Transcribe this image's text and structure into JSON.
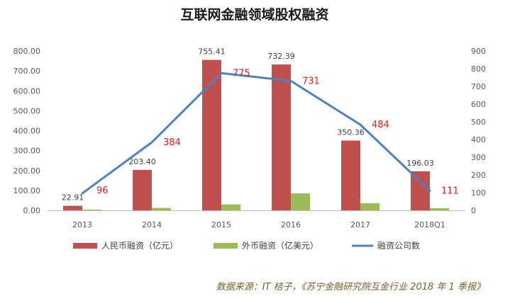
{
  "chart_data": {
    "type": "bar",
    "title": "互联网金融领域股权融资",
    "categories": [
      "2013",
      "2014",
      "2015",
      "2016",
      "2017",
      "2018Q1"
    ],
    "series": [
      {
        "name": "人民币融资（亿元）",
        "type": "bar",
        "axis": "left",
        "color": "#c0504d",
        "values": [
          22.91,
          203.4,
          755.41,
          732.39,
          350.36,
          196.03
        ],
        "labels": [
          "22.91",
          "203.40",
          "755.41",
          "732.39",
          "350.36",
          "196.03"
        ]
      },
      {
        "name": "外币融资（亿美元）",
        "type": "bar",
        "axis": "left",
        "color": "#9bbb59",
        "values": [
          4,
          12,
          30,
          85,
          36,
          11
        ]
      },
      {
        "name": "融资公司数",
        "type": "line",
        "axis": "right",
        "color": "#4f81bd",
        "values": [
          96,
          384,
          775,
          731,
          484,
          111
        ],
        "labels": [
          "96",
          "384",
          "775",
          "731",
          "484",
          "111"
        ]
      }
    ],
    "y_left": {
      "ylim": [
        0,
        800
      ],
      "ticks": [
        "0.00",
        "100.00",
        "200.00",
        "300.00",
        "400.00",
        "500.00",
        "600.00",
        "700.00",
        "800.00"
      ]
    },
    "y_right": {
      "ylim": [
        0,
        900
      ],
      "ticks": [
        "0",
        "100",
        "200",
        "300",
        "400",
        "500",
        "600",
        "700",
        "800",
        "900"
      ]
    },
    "grid": false,
    "legend": "bottom",
    "source": "数据来源：IT 桔子，《苏宁金融研究院互金行业 2018 年 1 季报》"
  }
}
